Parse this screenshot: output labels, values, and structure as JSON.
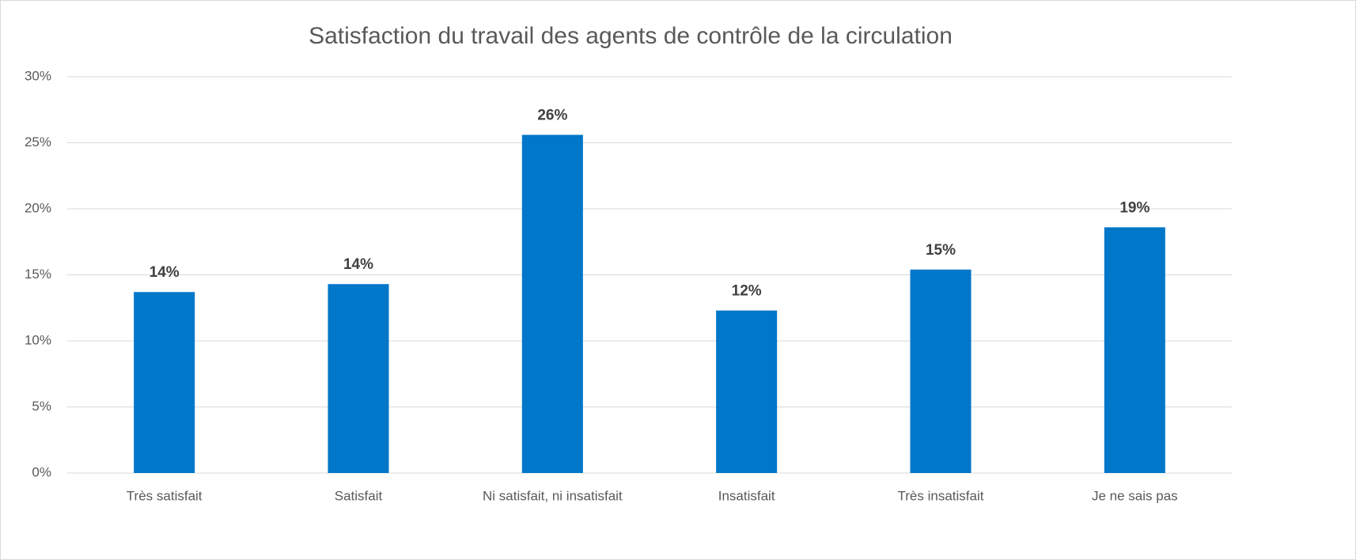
{
  "chart_data": {
    "type": "bar",
    "title": "Satisfaction du travail des agents de contrôle de la circulation",
    "categories": [
      "Très satisfait",
      "Satisfait",
      "Ni satisfait, ni insatisfait",
      "Insatisfait",
      "Très insatisfait",
      "Je ne sais pas"
    ],
    "values": [
      13.7,
      14.3,
      25.6,
      12.3,
      15.4,
      18.6
    ],
    "value_labels": [
      "14%",
      "14%",
      "26%",
      "12%",
      "15%",
      "19%"
    ],
    "color": "#0077c8",
    "ylim": [
      0,
      30
    ],
    "yticks": [
      {
        "value": 0,
        "label": "0%"
      },
      {
        "value": 5,
        "label": "5%"
      },
      {
        "value": 10,
        "label": "10%"
      },
      {
        "value": 15,
        "label": "15%"
      },
      {
        "value": 20,
        "label": "20%"
      },
      {
        "value": 25,
        "label": "25%"
      },
      {
        "value": 30,
        "label": "30%"
      }
    ],
    "grid": true
  }
}
